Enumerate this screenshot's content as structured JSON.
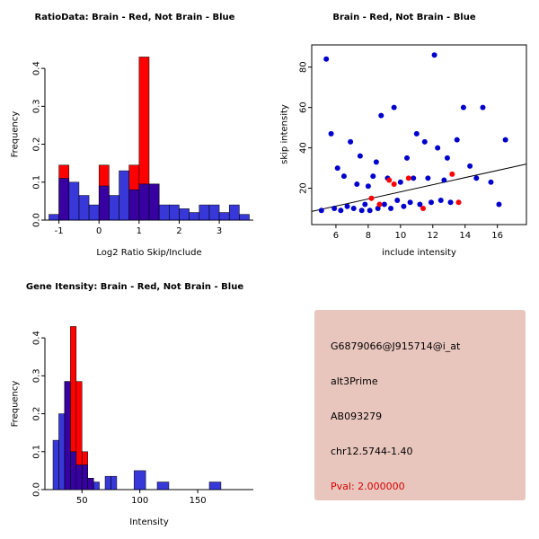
{
  "colors": {
    "brain_red": "#ff0000",
    "not_brain_blue": "#0000cd",
    "axis_black": "#000000",
    "info_panel_bg": "#e9c6bd",
    "pval_red": "#d40000"
  },
  "panels": {
    "ratio_hist": {
      "title": "RatioData: Brain - Red, Not Brain - Blue",
      "xlabel": "Log2 Ratio Skip/Include",
      "ylabel": "Frequency"
    },
    "scatter": {
      "title": "Brain - Red, Not Brain - Blue",
      "xlabel": "include intensity",
      "ylabel": "skip intensity"
    },
    "gene_hist": {
      "title": "Gene Itensity: Brain - Red, Not Brain - Blue",
      "xlabel": "Intensity",
      "ylabel": "Frequency"
    },
    "info": {
      "lines": [
        "G6879066@J915714@i_at",
        "alt3Prime",
        "AB093279",
        "chr12.5744-1.40"
      ],
      "pval": "Pval: 2.000000"
    }
  },
  "chart_data": [
    {
      "id": "ratio_hist",
      "type": "bar",
      "subtype": "overlaid-histogram",
      "title": "RatioData: Brain - Red, Not Brain - Blue",
      "xlabel": "Log2 Ratio Skip/Include",
      "ylabel": "Frequency",
      "xlim": [
        -1.35,
        3.85
      ],
      "ylim": [
        0,
        0.45
      ],
      "xticks": [
        -1,
        0,
        1,
        2,
        3
      ],
      "yticks": [
        0.0,
        0.1,
        0.2,
        0.3,
        0.4
      ],
      "xtick_decimals": 0,
      "ytick_decimals": 1,
      "bin_width": 0.25,
      "grid": false,
      "legend": "none",
      "series": [
        {
          "name": "Brain",
          "color": "#ff0000",
          "opacity": 1,
          "bins": [
            [
              -1.0,
              0.145
            ],
            [
              0.0,
              0.145
            ],
            [
              0.75,
              0.145
            ],
            [
              1.0,
              0.43
            ],
            [
              1.25,
              0.095
            ]
          ]
        },
        {
          "name": "Not Brain",
          "color": "#0000cd",
          "opacity": 0.78,
          "bins": [
            [
              -1.25,
              0.015
            ],
            [
              -1.0,
              0.11
            ],
            [
              -0.75,
              0.1
            ],
            [
              -0.5,
              0.065
            ],
            [
              -0.25,
              0.04
            ],
            [
              0.0,
              0.09
            ],
            [
              0.25,
              0.065
            ],
            [
              0.5,
              0.13
            ],
            [
              0.75,
              0.08
            ],
            [
              1.0,
              0.095
            ],
            [
              1.25,
              0.095
            ],
            [
              1.5,
              0.04
            ],
            [
              1.75,
              0.04
            ],
            [
              2.0,
              0.03
            ],
            [
              2.25,
              0.02
            ],
            [
              2.5,
              0.04
            ],
            [
              2.75,
              0.04
            ],
            [
              3.0,
              0.02
            ],
            [
              3.25,
              0.04
            ],
            [
              3.5,
              0.015
            ]
          ]
        }
      ]
    },
    {
      "id": "scatter",
      "type": "scatter",
      "title": "Brain - Red, Not Brain - Blue",
      "xlabel": "include intensity",
      "ylabel": "skip intensity",
      "xlim": [
        4.5,
        17.8
      ],
      "ylim": [
        2,
        91
      ],
      "xticks": [
        6,
        8,
        10,
        12,
        14,
        16
      ],
      "yticks": [
        20,
        40,
        60,
        80
      ],
      "grid": false,
      "legend": "none",
      "fit_line": {
        "x1": 4.5,
        "y1": 8.5,
        "x2": 17.8,
        "y2": 32
      },
      "series": [
        {
          "name": "Not Brain",
          "color": "#0000cd",
          "points": [
            [
              5.1,
              9
            ],
            [
              5.4,
              84
            ],
            [
              5.7,
              47
            ],
            [
              5.9,
              10
            ],
            [
              6.1,
              30
            ],
            [
              6.3,
              9
            ],
            [
              6.5,
              26
            ],
            [
              6.7,
              11
            ],
            [
              6.9,
              43
            ],
            [
              7.1,
              10
            ],
            [
              7.3,
              22
            ],
            [
              7.5,
              36
            ],
            [
              7.6,
              9
            ],
            [
              7.8,
              12
            ],
            [
              8.0,
              21
            ],
            [
              8.1,
              9
            ],
            [
              8.3,
              26
            ],
            [
              8.5,
              33
            ],
            [
              8.6,
              10
            ],
            [
              8.8,
              56
            ],
            [
              9.0,
              12
            ],
            [
              9.2,
              25
            ],
            [
              9.4,
              10
            ],
            [
              9.6,
              60
            ],
            [
              9.8,
              14
            ],
            [
              10.0,
              23
            ],
            [
              10.2,
              11
            ],
            [
              10.4,
              35
            ],
            [
              10.6,
              13
            ],
            [
              10.8,
              25
            ],
            [
              11.0,
              47
            ],
            [
              11.2,
              12
            ],
            [
              11.5,
              43
            ],
            [
              11.7,
              25
            ],
            [
              11.9,
              13
            ],
            [
              12.1,
              86
            ],
            [
              12.3,
              40
            ],
            [
              12.5,
              14
            ],
            [
              12.7,
              24
            ],
            [
              12.9,
              35
            ],
            [
              13.1,
              13
            ],
            [
              13.5,
              44
            ],
            [
              13.9,
              60
            ],
            [
              14.3,
              31
            ],
            [
              14.7,
              25
            ],
            [
              15.1,
              60
            ],
            [
              15.6,
              23
            ],
            [
              16.1,
              12
            ],
            [
              16.5,
              44
            ]
          ]
        },
        {
          "name": "Brain",
          "color": "#ff0000",
          "points": [
            [
              8.2,
              15
            ],
            [
              8.7,
              12
            ],
            [
              9.3,
              24
            ],
            [
              9.6,
              22
            ],
            [
              10.5,
              25
            ],
            [
              11.4,
              10
            ],
            [
              13.2,
              27
            ],
            [
              13.6,
              13
            ]
          ]
        }
      ]
    },
    {
      "id": "gene_hist",
      "type": "bar",
      "subtype": "overlaid-histogram",
      "title": "Gene Itensity: Brain - Red, Not Brain - Blue",
      "xlabel": "Intensity",
      "ylabel": "Frequency",
      "xlim": [
        18,
        198
      ],
      "ylim": [
        0,
        0.45
      ],
      "xticks": [
        50,
        100,
        150
      ],
      "yticks": [
        0.0,
        0.1,
        0.2,
        0.3,
        0.4
      ],
      "xtick_decimals": 0,
      "ytick_decimals": 1,
      "bin_width": 5,
      "grid": false,
      "legend": "none",
      "series": [
        {
          "name": "Brain",
          "color": "#ff0000",
          "opacity": 1,
          "bins": [
            [
              35,
              0.285
            ],
            [
              40,
              0.43
            ],
            [
              45,
              0.285
            ],
            [
              50,
              0.1
            ],
            [
              55,
              0.03
            ]
          ]
        },
        {
          "name": "Not Brain",
          "color": "#0000cd",
          "opacity": 0.78,
          "bins": [
            [
              25,
              0.13
            ],
            [
              30,
              0.2
            ],
            [
              35,
              0.285
            ],
            [
              40,
              0.1
            ],
            [
              45,
              0.065
            ],
            [
              50,
              0.065
            ],
            [
              55,
              0.03
            ],
            [
              60,
              0.02
            ],
            [
              70,
              0.035
            ],
            [
              75,
              0.035
            ],
            [
              95,
              0.05,
              10
            ],
            [
              115,
              0.02,
              10
            ],
            [
              160,
              0.02,
              10
            ]
          ]
        }
      ]
    }
  ]
}
